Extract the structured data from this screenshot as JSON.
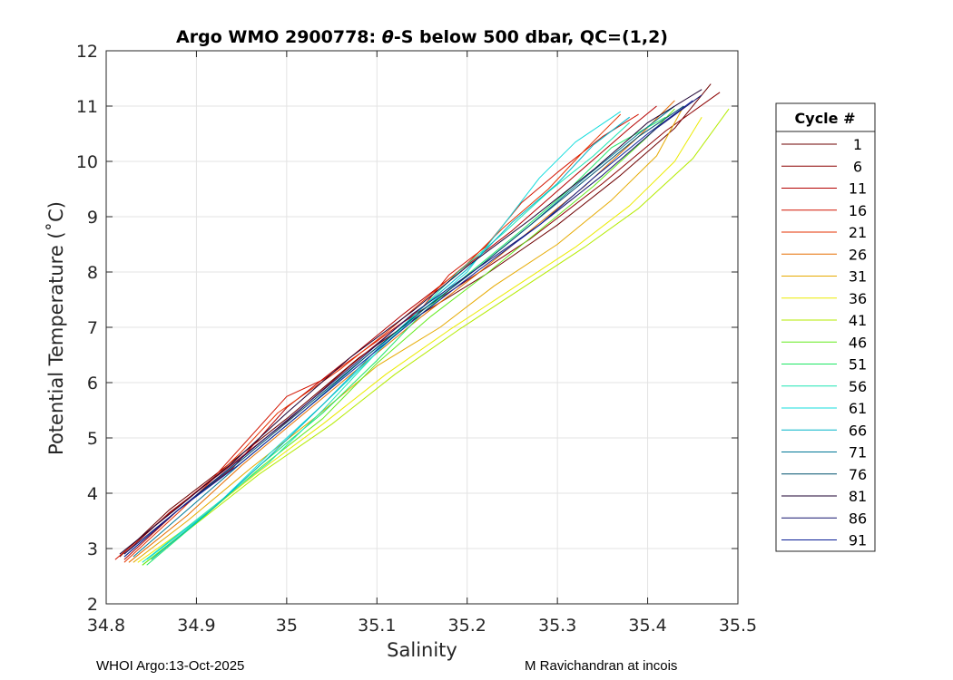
{
  "chart_data": {
    "type": "line",
    "title_parts": {
      "prefix": "Argo WMO 2900778: ",
      "theta": "θ",
      "suffix": "-S below 500 dbar,  QC=(1,2)"
    },
    "xlabel": "Salinity",
    "ylabel": "Potential Temperature (˚C)",
    "xlim": [
      34.8,
      35.5
    ],
    "ylim": [
      2,
      12
    ],
    "xticks": [
      34.8,
      34.9,
      35,
      35.1,
      35.2,
      35.3,
      35.4,
      35.5
    ],
    "xtick_labels": [
      "34.8",
      "34.9",
      "35",
      "35.1",
      "35.2",
      "35.3",
      "35.4",
      "35.5"
    ],
    "yticks": [
      2,
      3,
      4,
      5,
      6,
      7,
      8,
      9,
      10,
      11,
      12
    ],
    "ytick_labels": [
      "2",
      "3",
      "4",
      "5",
      "6",
      "7",
      "8",
      "9",
      "10",
      "11",
      "12"
    ],
    "grid": true,
    "legend": {
      "title": "Cycle #",
      "position": "outside-right",
      "entries": [
        {
          "label": "1",
          "color": "#6e0000"
        },
        {
          "label": "6",
          "color": "#8c0000"
        },
        {
          "label": "11",
          "color": "#b40000"
        },
        {
          "label": "16",
          "color": "#d21400"
        },
        {
          "label": "21",
          "color": "#e63200"
        },
        {
          "label": "26",
          "color": "#e66e00"
        },
        {
          "label": "31",
          "color": "#e6aa00"
        },
        {
          "label": "36",
          "color": "#ebeb00"
        },
        {
          "label": "41",
          "color": "#b4eb00"
        },
        {
          "label": "46",
          "color": "#64eb1e"
        },
        {
          "label": "51",
          "color": "#1ee664"
        },
        {
          "label": "56",
          "color": "#1ee6b4"
        },
        {
          "label": "61",
          "color": "#14dcdc"
        },
        {
          "label": "66",
          "color": "#00b4c8"
        },
        {
          "label": "71",
          "color": "#007896"
        },
        {
          "label": "76",
          "color": "#00506e"
        },
        {
          "label": "81",
          "color": "#1e0032"
        },
        {
          "label": "86",
          "color": "#14146e"
        },
        {
          "label": "91",
          "color": "#0a1e96"
        }
      ]
    },
    "profiles": [
      {
        "cycle": 1,
        "color": "#6e0000",
        "points": [
          [
            34.815,
            2.85
          ],
          [
            34.87,
            3.7
          ],
          [
            34.93,
            4.45
          ],
          [
            35.0,
            5.35
          ],
          [
            35.08,
            6.45
          ],
          [
            35.15,
            7.25
          ],
          [
            35.22,
            7.95
          ],
          [
            35.3,
            8.85
          ],
          [
            35.37,
            9.75
          ],
          [
            35.43,
            10.6
          ],
          [
            35.47,
            11.4
          ]
        ]
      },
      {
        "cycle": 6,
        "color": "#8c0000",
        "points": [
          [
            34.82,
            2.9
          ],
          [
            34.87,
            3.65
          ],
          [
            34.93,
            4.4
          ],
          [
            35.0,
            5.3
          ],
          [
            35.07,
            6.3
          ],
          [
            35.13,
            7.1
          ],
          [
            35.2,
            7.85
          ],
          [
            35.27,
            8.6
          ],
          [
            35.35,
            9.6
          ],
          [
            35.42,
            10.55
          ],
          [
            35.48,
            11.25
          ]
        ]
      },
      {
        "cycle": 11,
        "color": "#b40000",
        "points": [
          [
            34.82,
            2.8
          ],
          [
            34.88,
            3.7
          ],
          [
            34.94,
            4.45
          ],
          [
            35.0,
            5.55
          ],
          [
            35.07,
            6.45
          ],
          [
            35.13,
            7.25
          ],
          [
            35.19,
            8.0
          ],
          [
            35.25,
            8.75
          ],
          [
            35.32,
            9.75
          ],
          [
            35.38,
            10.6
          ],
          [
            35.41,
            11.0
          ]
        ]
      },
      {
        "cycle": 16,
        "color": "#d21400",
        "points": [
          [
            34.81,
            2.8
          ],
          [
            34.86,
            3.5
          ],
          [
            34.92,
            4.3
          ],
          [
            35.0,
            5.75
          ],
          [
            35.04,
            6.05
          ],
          [
            35.1,
            6.75
          ],
          [
            35.15,
            7.35
          ],
          [
            35.18,
            7.95
          ],
          [
            35.22,
            8.45
          ],
          [
            35.26,
            9.25
          ],
          [
            35.3,
            9.8
          ],
          [
            35.35,
            10.45
          ],
          [
            35.39,
            10.85
          ]
        ]
      },
      {
        "cycle": 21,
        "color": "#e63200",
        "points": [
          [
            34.82,
            2.75
          ],
          [
            34.88,
            3.65
          ],
          [
            34.95,
            4.75
          ],
          [
            34.99,
            5.45
          ],
          [
            35.06,
            6.25
          ],
          [
            35.11,
            6.9
          ],
          [
            35.16,
            7.6
          ],
          [
            35.2,
            8.15
          ],
          [
            35.24,
            8.8
          ],
          [
            35.29,
            9.5
          ],
          [
            35.33,
            10.2
          ],
          [
            35.37,
            10.85
          ]
        ]
      },
      {
        "cycle": 26,
        "color": "#e66e00",
        "points": [
          [
            34.825,
            2.75
          ],
          [
            34.89,
            3.6
          ],
          [
            34.95,
            4.5
          ],
          [
            35.02,
            5.45
          ],
          [
            35.09,
            6.4
          ],
          [
            35.15,
            7.2
          ],
          [
            35.21,
            7.95
          ],
          [
            35.27,
            8.75
          ],
          [
            35.33,
            9.55
          ],
          [
            35.39,
            10.45
          ],
          [
            35.43,
            11.1
          ]
        ]
      },
      {
        "cycle": 31,
        "color": "#e6aa00",
        "points": [
          [
            34.83,
            2.75
          ],
          [
            34.89,
            3.5
          ],
          [
            34.96,
            4.45
          ],
          [
            35.03,
            5.35
          ],
          [
            35.1,
            6.3
          ],
          [
            35.17,
            7.0
          ],
          [
            35.23,
            7.75
          ],
          [
            35.3,
            8.5
          ],
          [
            35.36,
            9.3
          ],
          [
            35.41,
            10.1
          ],
          [
            35.44,
            11.0
          ]
        ]
      },
      {
        "cycle": 36,
        "color": "#ebeb00",
        "points": [
          [
            34.835,
            2.75
          ],
          [
            34.9,
            3.5
          ],
          [
            34.97,
            4.4
          ],
          [
            35.04,
            5.25
          ],
          [
            35.11,
            6.15
          ],
          [
            35.18,
            6.95
          ],
          [
            35.25,
            7.7
          ],
          [
            35.32,
            8.45
          ],
          [
            35.38,
            9.2
          ],
          [
            35.43,
            10.0
          ],
          [
            35.46,
            10.8
          ]
        ]
      },
      {
        "cycle": 41,
        "color": "#b4eb00",
        "points": [
          [
            34.84,
            2.7
          ],
          [
            34.9,
            3.45
          ],
          [
            34.97,
            4.35
          ],
          [
            35.05,
            5.25
          ],
          [
            35.12,
            6.15
          ],
          [
            35.19,
            6.95
          ],
          [
            35.26,
            7.7
          ],
          [
            35.33,
            8.45
          ],
          [
            35.39,
            9.15
          ],
          [
            35.45,
            10.05
          ],
          [
            35.49,
            10.95
          ]
        ]
      },
      {
        "cycle": 46,
        "color": "#64eb1e",
        "points": [
          [
            34.84,
            2.7
          ],
          [
            34.91,
            3.6
          ],
          [
            34.97,
            4.45
          ],
          [
            35.04,
            5.35
          ],
          [
            35.1,
            6.35
          ],
          [
            35.16,
            7.2
          ],
          [
            35.22,
            7.95
          ],
          [
            35.28,
            8.75
          ],
          [
            35.34,
            9.55
          ],
          [
            35.4,
            10.45
          ],
          [
            35.43,
            10.95
          ]
        ]
      },
      {
        "cycle": 51,
        "color": "#1ee664",
        "points": [
          [
            34.845,
            2.7
          ],
          [
            34.91,
            3.6
          ],
          [
            34.97,
            4.5
          ],
          [
            35.04,
            5.45
          ],
          [
            35.1,
            6.4
          ],
          [
            35.15,
            7.25
          ],
          [
            35.2,
            7.95
          ],
          [
            35.26,
            8.75
          ],
          [
            35.31,
            9.45
          ],
          [
            35.36,
            10.25
          ],
          [
            35.42,
            10.8
          ]
        ]
      },
      {
        "cycle": 56,
        "color": "#1ee6b4",
        "points": [
          [
            34.84,
            2.75
          ],
          [
            34.91,
            3.65
          ],
          [
            34.98,
            4.55
          ],
          [
            35.04,
            5.5
          ],
          [
            35.1,
            6.55
          ],
          [
            35.15,
            7.35
          ],
          [
            35.19,
            8.0
          ],
          [
            35.24,
            8.7
          ],
          [
            35.29,
            9.45
          ],
          [
            35.34,
            10.1
          ],
          [
            35.38,
            10.7
          ]
        ]
      },
      {
        "cycle": 61,
        "color": "#14dcdc",
        "points": [
          [
            34.845,
            2.8
          ],
          [
            34.92,
            3.75
          ],
          [
            34.98,
            4.7
          ],
          [
            35.04,
            5.6
          ],
          [
            35.1,
            6.55
          ],
          [
            35.15,
            7.3
          ],
          [
            35.2,
            8.0
          ],
          [
            35.24,
            8.85
          ],
          [
            35.28,
            9.7
          ],
          [
            35.32,
            10.35
          ],
          [
            35.37,
            10.9
          ]
        ]
      },
      {
        "cycle": 66,
        "color": "#00b4c8",
        "points": [
          [
            34.85,
            2.8
          ],
          [
            34.92,
            3.75
          ],
          [
            34.98,
            4.65
          ],
          [
            35.04,
            5.6
          ],
          [
            35.1,
            6.6
          ],
          [
            35.15,
            7.35
          ],
          [
            35.2,
            8.05
          ],
          [
            35.25,
            8.9
          ],
          [
            35.3,
            9.6
          ],
          [
            35.34,
            10.3
          ],
          [
            35.38,
            10.8
          ]
        ]
      },
      {
        "cycle": 71,
        "color": "#007896",
        "points": [
          [
            34.83,
            2.85
          ],
          [
            34.89,
            3.7
          ],
          [
            34.95,
            4.55
          ],
          [
            35.02,
            5.5
          ],
          [
            35.09,
            6.5
          ],
          [
            35.15,
            7.3
          ],
          [
            35.21,
            8.05
          ],
          [
            35.27,
            8.85
          ],
          [
            35.33,
            9.7
          ],
          [
            35.39,
            10.5
          ],
          [
            35.43,
            11.0
          ]
        ]
      },
      {
        "cycle": 76,
        "color": "#00506e",
        "points": [
          [
            34.82,
            2.85
          ],
          [
            34.88,
            3.7
          ],
          [
            34.95,
            4.6
          ],
          [
            35.02,
            5.55
          ],
          [
            35.09,
            6.5
          ],
          [
            35.15,
            7.3
          ],
          [
            35.21,
            8.05
          ],
          [
            35.27,
            8.85
          ],
          [
            35.33,
            9.65
          ],
          [
            35.39,
            10.45
          ],
          [
            35.44,
            11.0
          ]
        ]
      },
      {
        "cycle": 81,
        "color": "#1e0032",
        "points": [
          [
            34.815,
            2.9
          ],
          [
            34.88,
            3.75
          ],
          [
            34.94,
            4.55
          ],
          [
            35.0,
            5.45
          ],
          [
            35.07,
            6.45
          ],
          [
            35.14,
            7.3
          ],
          [
            35.2,
            8.1
          ],
          [
            35.27,
            8.95
          ],
          [
            35.34,
            9.85
          ],
          [
            35.4,
            10.7
          ],
          [
            35.46,
            11.3
          ]
        ]
      },
      {
        "cycle": 86,
        "color": "#14146e",
        "points": [
          [
            34.82,
            2.9
          ],
          [
            34.88,
            3.7
          ],
          [
            34.94,
            4.5
          ],
          [
            35.01,
            5.45
          ],
          [
            35.08,
            6.4
          ],
          [
            35.14,
            7.25
          ],
          [
            35.21,
            8.05
          ],
          [
            35.28,
            8.85
          ],
          [
            35.35,
            9.75
          ],
          [
            35.41,
            10.6
          ],
          [
            35.46,
            11.2
          ]
        ]
      },
      {
        "cycle": 91,
        "color": "#0a1e96",
        "points": [
          [
            34.82,
            2.85
          ],
          [
            34.88,
            3.7
          ],
          [
            34.95,
            4.55
          ],
          [
            35.02,
            5.5
          ],
          [
            35.09,
            6.45
          ],
          [
            35.15,
            7.25
          ],
          [
            35.21,
            8.0
          ],
          [
            35.28,
            8.85
          ],
          [
            35.34,
            9.7
          ],
          [
            35.4,
            10.5
          ],
          [
            35.45,
            11.1
          ]
        ]
      }
    ]
  },
  "footer": {
    "left": "WHOI Argo:13-Oct-2025",
    "right": "M Ravichandran at incois"
  }
}
